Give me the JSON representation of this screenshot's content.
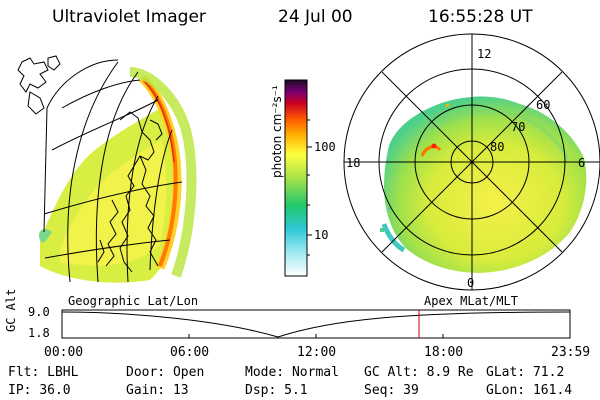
{
  "header": {
    "title": "Ultraviolet Imager",
    "date": "24 Jul 00",
    "time": "16:55:28 UT"
  },
  "colorbar": {
    "label": "photon cm⁻²s⁻¹",
    "ticks": [
      "100",
      "10"
    ]
  },
  "polar": {
    "mlt_labels": {
      "top": "12",
      "left": "18",
      "right": "6",
      "bottom": "0"
    },
    "lat_labels": [
      "60",
      "70",
      "80"
    ]
  },
  "panels": {
    "left_caption": "Geographic Lat/Lon",
    "right_caption": "Apex MLat/MLT"
  },
  "timeline": {
    "ylabel": "GC Alt",
    "y_top": "9.0",
    "y_bottom": "1.8",
    "x_ticks": [
      "00:00",
      "06:00",
      "12:00",
      "18:00",
      "23:59"
    ],
    "current_time": "16:55"
  },
  "params": {
    "row1": [
      {
        "label": "Flt:",
        "value": "LBHL"
      },
      {
        "label": "Door:",
        "value": "Open"
      },
      {
        "label": "Mode:",
        "value": "Normal"
      },
      {
        "label": "GC Alt:",
        "value": "8.9 Re"
      },
      {
        "label": "GLat:",
        "value": "71.2"
      }
    ],
    "row2": [
      {
        "label": "IP:",
        "value": "36.0"
      },
      {
        "label": "Gain:",
        "value": "13"
      },
      {
        "label": "Dsp:",
        "value": "5.1"
      },
      {
        "label": "Seq:",
        "value": "39"
      },
      {
        "label": "GLon:",
        "value": "161.4"
      }
    ]
  },
  "colors": {
    "current_time_marker": "#cc0000",
    "aurora_low": "#b8e63a",
    "aurora_high": "#ff8000"
  }
}
